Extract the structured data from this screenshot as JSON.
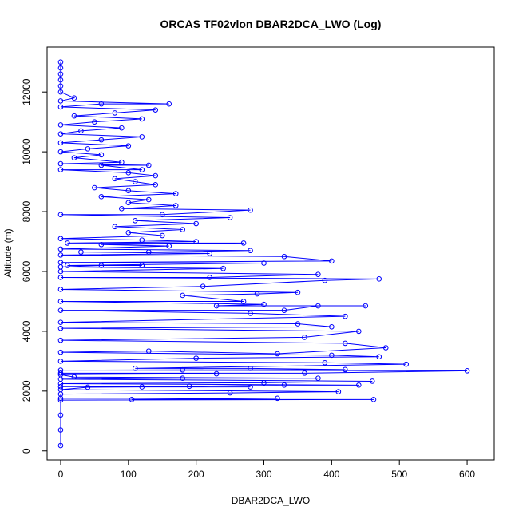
{
  "chart_data": {
    "type": "scatter",
    "title": "ORCAS TF02vlon DBAR2DCA_LWO (Log)",
    "xlabel": "DBAR2DCA_LWO",
    "ylabel": "Altitude (m)",
    "xlim": [
      -20,
      640
    ],
    "ylim": [
      -300,
      13500
    ],
    "x_ticks": [
      0,
      100,
      200,
      300,
      400,
      500,
      600
    ],
    "y_ticks": [
      0,
      2000,
      4000,
      6000,
      8000,
      10000,
      12000
    ],
    "grid": false,
    "marker": "open-circle",
    "connected": true,
    "series_color": "#0000ff",
    "series": [
      {
        "points": [
          [
            0,
            180
          ],
          [
            0,
            700
          ],
          [
            0,
            1200
          ],
          [
            0,
            1700
          ],
          [
            462,
            1720
          ],
          [
            105,
            1720
          ],
          [
            320,
            1760
          ],
          [
            0,
            1760
          ],
          [
            0,
            1900
          ],
          [
            250,
            1940
          ],
          [
            410,
            1980
          ],
          [
            0,
            2050
          ],
          [
            40,
            2130
          ],
          [
            120,
            2140
          ],
          [
            280,
            2140
          ],
          [
            0,
            2150
          ],
          [
            190,
            2160
          ],
          [
            330,
            2200
          ],
          [
            440,
            2200
          ],
          [
            0,
            2250
          ],
          [
            300,
            2280
          ],
          [
            460,
            2330
          ],
          [
            0,
            2400
          ],
          [
            180,
            2430
          ],
          [
            380,
            2430
          ],
          [
            20,
            2470
          ],
          [
            0,
            2550
          ],
          [
            230,
            2580
          ],
          [
            0,
            2600
          ],
          [
            360,
            2600
          ],
          [
            600,
            2680
          ],
          [
            0,
            2700
          ],
          [
            180,
            2710
          ],
          [
            420,
            2720
          ],
          [
            280,
            2760
          ],
          [
            110,
            2760
          ],
          [
            510,
            2900
          ],
          [
            390,
            2950
          ],
          [
            0,
            3000
          ],
          [
            200,
            3100
          ],
          [
            470,
            3150
          ],
          [
            400,
            3200
          ],
          [
            0,
            3300
          ],
          [
            130,
            3340
          ],
          [
            320,
            3250
          ],
          [
            480,
            3450
          ],
          [
            420,
            3600
          ],
          [
            0,
            3700
          ],
          [
            360,
            3800
          ],
          [
            440,
            4000
          ],
          [
            0,
            4100
          ],
          [
            400,
            4150
          ],
          [
            350,
            4250
          ],
          [
            0,
            4300
          ],
          [
            420,
            4500
          ],
          [
            280,
            4600
          ],
          [
            0,
            4700
          ],
          [
            330,
            4700
          ],
          [
            380,
            4850
          ],
          [
            450,
            4850
          ],
          [
            230,
            4850
          ],
          [
            300,
            4900
          ],
          [
            0,
            5000
          ],
          [
            270,
            5000
          ],
          [
            180,
            5200
          ],
          [
            290,
            5250
          ],
          [
            350,
            5300
          ],
          [
            0,
            5400
          ],
          [
            210,
            5500
          ],
          [
            390,
            5700
          ],
          [
            470,
            5750
          ],
          [
            0,
            5800
          ],
          [
            220,
            5800
          ],
          [
            380,
            5900
          ],
          [
            0,
            6000
          ],
          [
            240,
            6100
          ],
          [
            0,
            6150
          ],
          [
            60,
            6200
          ],
          [
            120,
            6200
          ],
          [
            10,
            6200
          ],
          [
            300,
            6280
          ],
          [
            0,
            6300
          ],
          [
            400,
            6350
          ],
          [
            330,
            6500
          ],
          [
            0,
            6550
          ],
          [
            220,
            6600
          ],
          [
            30,
            6650
          ],
          [
            130,
            6650
          ],
          [
            280,
            6700
          ],
          [
            0,
            6750
          ],
          [
            160,
            6850
          ],
          [
            60,
            6900
          ],
          [
            270,
            6950
          ],
          [
            10,
            6950
          ],
          [
            200,
            7000
          ],
          [
            120,
            7050
          ],
          [
            0,
            7100
          ],
          [
            150,
            7200
          ],
          [
            100,
            7300
          ],
          [
            180,
            7400
          ],
          [
            80,
            7500
          ],
          [
            200,
            7600
          ],
          [
            110,
            7700
          ],
          [
            250,
            7800
          ],
          [
            0,
            7900
          ],
          [
            150,
            7900
          ],
          [
            280,
            8050
          ],
          [
            90,
            8100
          ],
          [
            170,
            8200
          ],
          [
            100,
            8300
          ],
          [
            130,
            8400
          ],
          [
            60,
            8500
          ],
          [
            170,
            8600
          ],
          [
            100,
            8700
          ],
          [
            50,
            8800
          ],
          [
            140,
            8900
          ],
          [
            110,
            9000
          ],
          [
            80,
            9100
          ],
          [
            140,
            9200
          ],
          [
            100,
            9300
          ],
          [
            0,
            9400
          ],
          [
            120,
            9400
          ],
          [
            60,
            9550
          ],
          [
            130,
            9550
          ],
          [
            0,
            9600
          ],
          [
            90,
            9650
          ],
          [
            20,
            9800
          ],
          [
            60,
            9900
          ],
          [
            0,
            10000
          ],
          [
            40,
            10100
          ],
          [
            100,
            10200
          ],
          [
            0,
            10300
          ],
          [
            60,
            10400
          ],
          [
            120,
            10500
          ],
          [
            0,
            10600
          ],
          [
            30,
            10700
          ],
          [
            90,
            10800
          ],
          [
            0,
            10900
          ],
          [
            50,
            11000
          ],
          [
            120,
            11100
          ],
          [
            20,
            11200
          ],
          [
            80,
            11300
          ],
          [
            140,
            11400
          ],
          [
            0,
            11500
          ],
          [
            60,
            11600
          ],
          [
            160,
            11600
          ],
          [
            0,
            11700
          ],
          [
            20,
            11800
          ],
          [
            0,
            12000
          ],
          [
            0,
            12200
          ],
          [
            0,
            12400
          ],
          [
            0,
            12600
          ],
          [
            0,
            12800
          ],
          [
            0,
            13000
          ]
        ]
      }
    ]
  }
}
